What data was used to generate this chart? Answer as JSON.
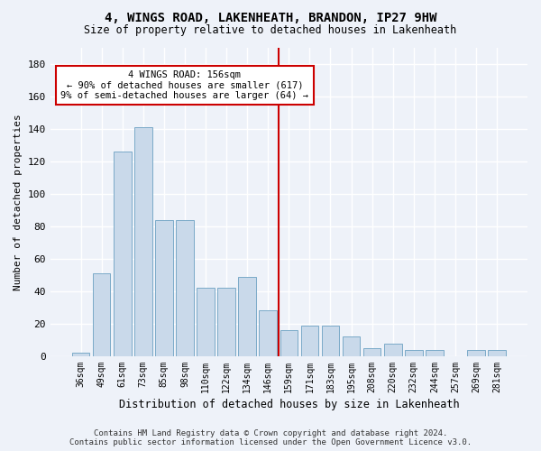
{
  "title": "4, WINGS ROAD, LAKENHEATH, BRANDON, IP27 9HW",
  "subtitle": "Size of property relative to detached houses in Lakenheath",
  "xlabel": "Distribution of detached houses by size in Lakenheath",
  "ylabel": "Number of detached properties",
  "categories": [
    "36sqm",
    "49sqm",
    "61sqm",
    "73sqm",
    "85sqm",
    "98sqm",
    "110sqm",
    "122sqm",
    "134sqm",
    "146sqm",
    "159sqm",
    "171sqm",
    "183sqm",
    "195sqm",
    "208sqm",
    "220sqm",
    "232sqm",
    "244sqm",
    "257sqm",
    "269sqm",
    "281sqm"
  ],
  "values": [
    2,
    51,
    126,
    141,
    84,
    84,
    42,
    42,
    49,
    28,
    16,
    19,
    19,
    12,
    5,
    8,
    4,
    4,
    0,
    4,
    4
  ],
  "bar_color": "#c9d9ea",
  "bar_edge_color": "#7aaac8",
  "vline_color": "#cc0000",
  "annotation_line1": "4 WINGS ROAD: 156sqm",
  "annotation_line2": "← 90% of detached houses are smaller (617)",
  "annotation_line3": "9% of semi-detached houses are larger (64) →",
  "annotation_box_color": "#ffffff",
  "annotation_box_edge": "#cc0000",
  "ylim": [
    0,
    190
  ],
  "yticks": [
    0,
    20,
    40,
    60,
    80,
    100,
    120,
    140,
    160,
    180
  ],
  "background_color": "#eef2f9",
  "grid_color": "#ffffff",
  "footer1": "Contains HM Land Registry data © Crown copyright and database right 2024.",
  "footer2": "Contains public sector information licensed under the Open Government Licence v3.0."
}
